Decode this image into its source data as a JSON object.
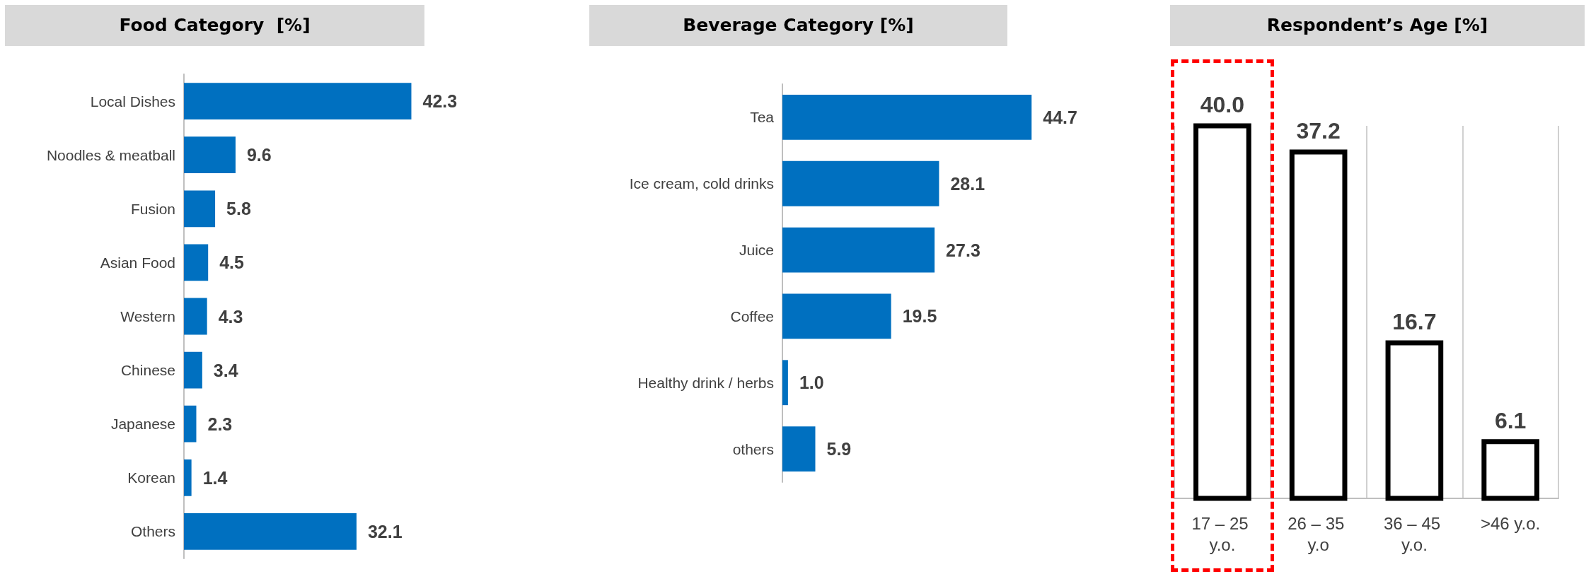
{
  "chart_data": [
    {
      "type": "bar",
      "title": "Food Category  [%]",
      "orientation": "horizontal",
      "categories": [
        "Local Dishes",
        "Noodles & meatball",
        "Fusion",
        "Asian Food",
        "Western",
        "Chinese",
        "Japanese",
        "Korean",
        "Others"
      ],
      "values": [
        42.3,
        9.6,
        5.8,
        4.5,
        4.3,
        3.4,
        2.3,
        1.4,
        32.1
      ],
      "value_labels": [
        "42.3",
        "9.6",
        "5.8",
        "4.5",
        "4.3",
        "3.4",
        "2.3",
        "1.4",
        "32.1"
      ],
      "color": "#0070c0",
      "grid": false
    },
    {
      "type": "bar",
      "title": "Beverage Category [%]",
      "orientation": "horizontal",
      "categories": [
        "Tea",
        "Ice cream, cold drinks",
        "Juice",
        "Coffee",
        "Healthy drink / herbs",
        "others"
      ],
      "values": [
        44.7,
        28.1,
        27.3,
        19.5,
        1.0,
        5.9
      ],
      "value_labels": [
        "44.7",
        "28.1",
        "27.3",
        "19.5",
        "1.0",
        "5.9"
      ],
      "color": "#0070c0",
      "grid": false
    },
    {
      "type": "bar",
      "title": "Respondent’s Age [%]",
      "categories": [
        "17 – 25 y.o.",
        "26 – 35 y.o",
        "36 – 45 y.o.",
        ">46 y.o."
      ],
      "values": [
        40.0,
        37.2,
        16.7,
        6.1
      ],
      "value_labels": [
        "40.0",
        "37.2",
        "16.7",
        "6.1"
      ],
      "color": "#ffffff",
      "grid": "x"
    }
  ]
}
